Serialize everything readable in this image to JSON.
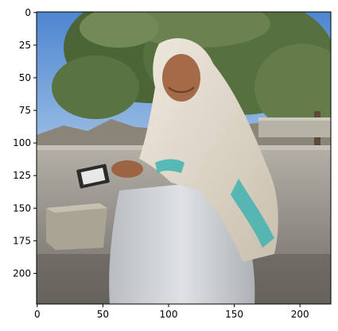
{
  "figure": {
    "image_description_semantic": "photo",
    "x_ticks": [
      "0",
      "50",
      "100",
      "150",
      "200"
    ],
    "y_ticks": [
      "0",
      "25",
      "50",
      "75",
      "100",
      "125",
      "150",
      "175",
      "200"
    ],
    "x_tick_values": [
      0,
      50,
      100,
      150,
      200
    ],
    "y_tick_values": [
      0,
      25,
      50,
      75,
      100,
      125,
      150,
      175,
      200
    ],
    "image_extent": {
      "x": [
        -0.5,
        223.5
      ],
      "y": [
        223.5,
        -0.5
      ]
    }
  },
  "colors": {
    "sky": "#5b8fd3",
    "tree": "#4f6a3a",
    "road": "#9e9c96",
    "shawl": "#e4ddd0",
    "dress": "#c9cdd2",
    "teal_pattern": "#3fb3b1",
    "skin": "#a56b48"
  }
}
